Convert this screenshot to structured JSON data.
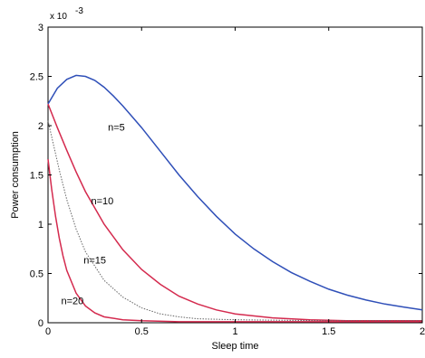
{
  "chart_data": {
    "type": "line",
    "xlabel": "Sleep time",
    "ylabel": "Power consumption",
    "y_exponent_label": "x 10",
    "y_exponent_power": "-3",
    "xlim": [
      0,
      2
    ],
    "ylim": [
      0,
      3
    ],
    "x_ticks": [
      {
        "value": 0,
        "label": "0"
      },
      {
        "value": 0.5,
        "label": "0.5"
      },
      {
        "value": 1,
        "label": "1"
      },
      {
        "value": 1.5,
        "label": "1.5"
      },
      {
        "value": 2,
        "label": "2"
      }
    ],
    "y_ticks": [
      {
        "value": 0,
        "label": "0"
      },
      {
        "value": 0.5,
        "label": "0.5"
      },
      {
        "value": 1,
        "label": "1"
      },
      {
        "value": 1.5,
        "label": "1.5"
      },
      {
        "value": 2,
        "label": "2"
      },
      {
        "value": 2.5,
        "label": "2.5"
      },
      {
        "value": 3,
        "label": "3"
      }
    ],
    "grid": false,
    "series": [
      {
        "name": "n=5",
        "color": "#2f4fb8",
        "dash": "solid",
        "label_at": [
          0.32,
          1.95
        ],
        "points": [
          [
            0,
            2.22
          ],
          [
            0.05,
            2.38
          ],
          [
            0.1,
            2.47
          ],
          [
            0.15,
            2.51
          ],
          [
            0.2,
            2.5
          ],
          [
            0.25,
            2.46
          ],
          [
            0.3,
            2.39
          ],
          [
            0.35,
            2.3
          ],
          [
            0.4,
            2.2
          ],
          [
            0.5,
            1.98
          ],
          [
            0.6,
            1.74
          ],
          [
            0.7,
            1.5
          ],
          [
            0.8,
            1.28
          ],
          [
            0.9,
            1.08
          ],
          [
            1.0,
            0.9
          ],
          [
            1.1,
            0.75
          ],
          [
            1.2,
            0.62
          ],
          [
            1.3,
            0.51
          ],
          [
            1.4,
            0.42
          ],
          [
            1.5,
            0.34
          ],
          [
            1.6,
            0.28
          ],
          [
            1.7,
            0.23
          ],
          [
            1.8,
            0.19
          ],
          [
            1.9,
            0.16
          ],
          [
            2.0,
            0.13
          ]
        ]
      },
      {
        "name": "n=10",
        "color": "#d42a4e",
        "dash": "solid",
        "label_at": [
          0.23,
          1.2
        ],
        "points": [
          [
            0,
            2.22
          ],
          [
            0.05,
            1.98
          ],
          [
            0.1,
            1.75
          ],
          [
            0.15,
            1.53
          ],
          [
            0.2,
            1.33
          ],
          [
            0.3,
            1.0
          ],
          [
            0.4,
            0.74
          ],
          [
            0.5,
            0.54
          ],
          [
            0.6,
            0.39
          ],
          [
            0.7,
            0.27
          ],
          [
            0.8,
            0.19
          ],
          [
            0.9,
            0.13
          ],
          [
            1.0,
            0.09
          ],
          [
            1.2,
            0.05
          ],
          [
            1.4,
            0.03
          ],
          [
            1.6,
            0.02
          ],
          [
            1.8,
            0.02
          ],
          [
            2.0,
            0.02
          ]
        ]
      },
      {
        "name": "n=15",
        "color": "#666666",
        "dash": "dotted",
        "label_at": [
          0.19,
          0.6
        ],
        "points": [
          [
            0,
            2.05
          ],
          [
            0.03,
            1.8
          ],
          [
            0.06,
            1.55
          ],
          [
            0.1,
            1.25
          ],
          [
            0.15,
            0.95
          ],
          [
            0.2,
            0.72
          ],
          [
            0.3,
            0.43
          ],
          [
            0.4,
            0.26
          ],
          [
            0.5,
            0.15
          ],
          [
            0.6,
            0.09
          ],
          [
            0.7,
            0.06
          ],
          [
            0.8,
            0.04
          ],
          [
            1.0,
            0.03
          ],
          [
            1.5,
            0.02
          ],
          [
            2.0,
            0.02
          ]
        ]
      },
      {
        "name": "n=20",
        "color": "#d42a4e",
        "dash": "solid",
        "label_at": [
          0.07,
          0.19
        ],
        "points": [
          [
            0,
            1.66
          ],
          [
            0.02,
            1.35
          ],
          [
            0.04,
            1.08
          ],
          [
            0.06,
            0.86
          ],
          [
            0.08,
            0.68
          ],
          [
            0.1,
            0.53
          ],
          [
            0.15,
            0.3
          ],
          [
            0.2,
            0.17
          ],
          [
            0.25,
            0.1
          ],
          [
            0.3,
            0.06
          ],
          [
            0.4,
            0.03
          ],
          [
            0.5,
            0.02
          ],
          [
            0.7,
            0.01
          ],
          [
            1.0,
            0.01
          ],
          [
            1.5,
            0.01
          ],
          [
            2.0,
            0.01
          ]
        ]
      }
    ]
  }
}
